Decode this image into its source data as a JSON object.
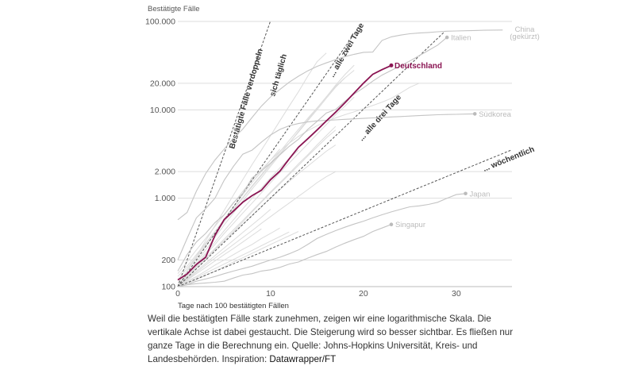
{
  "chart_data": {
    "type": "line",
    "ylabel": "Bestätigte Fälle",
    "xlabel": "Tage nach 100 bestätigten Fällen",
    "yscale": "log",
    "ylim": [
      100,
      100000
    ],
    "xlim": [
      0,
      36
    ],
    "yticks": [
      100,
      200,
      1000,
      2000,
      10000,
      20000,
      100000
    ],
    "ytick_labels": [
      "100",
      "200",
      "1.000",
      "2.000",
      "10.000",
      "20.000",
      "100.000"
    ],
    "xticks": [
      0,
      10,
      20,
      30
    ],
    "xtick_labels": [
      "0",
      "10",
      "20",
      "30"
    ],
    "grid": "horizontal",
    "colors": {
      "highlight": "#8a1452",
      "labeled": "#c4c4c4",
      "background": "#dcdcdc",
      "reference": "#555555"
    },
    "highlight": {
      "name": "Deutschland",
      "values": [
        119,
        139,
        178,
        215,
        380,
        575,
        717,
        902,
        1070,
        1230,
        1620,
        2024,
        2780,
        3770,
        4700,
        5900,
        7480,
        9400,
        12000,
        15500,
        20000,
        25200,
        28500,
        31800
      ]
    },
    "labeled_series": [
      {
        "name": "China",
        "name2": "(gekürzt)",
        "values": [
          570,
          690,
          1200,
          1900,
          2700,
          3600,
          4800,
          6070,
          8200,
          11000,
          14000,
          17000,
          20500,
          24000,
          27600,
          31000,
          34000,
          37000,
          40000,
          42500,
          44700,
          45000,
          61000,
          67000,
          70000,
          72500,
          74000,
          75000,
          76500,
          77500,
          78000,
          78500,
          79000,
          79500,
          79800,
          80000
        ]
      },
      {
        "name": "Italien",
        "values": [
          150,
          230,
          320,
          400,
          530,
          650,
          890,
          1130,
          1700,
          2040,
          2500,
          3090,
          3860,
          4640,
          6000,
          7400,
          9200,
          10100,
          12500,
          15100,
          17700,
          21100,
          24700,
          27980,
          31500,
          35700,
          41000,
          47000,
          54000,
          66000
        ]
      },
      {
        "name": "Südkorea",
        "values": [
          200,
          350,
          600,
          760,
          1000,
          1600,
          2300,
          3150,
          3500,
          4300,
          5200,
          6000,
          6600,
          7000,
          7300,
          7500,
          7600,
          7700,
          7800,
          7900,
          8000,
          8100,
          8200,
          8300,
          8400,
          8500,
          8600,
          8700,
          8800,
          8850,
          8900,
          8950,
          9000
        ]
      },
      {
        "name": "Japan",
        "values": [
          100,
          105,
          115,
          122,
          130,
          140,
          150,
          160,
          170,
          185,
          200,
          215,
          235,
          260,
          300,
          350,
          390,
          430,
          470,
          510,
          550,
          600,
          650,
          700,
          750,
          800,
          820,
          850,
          900,
          1000,
          1100,
          1130
        ]
      },
      {
        "name": "Singapur",
        "values": [
          100,
          105,
          108,
          110,
          112,
          115,
          125,
          135,
          140,
          150,
          155,
          165,
          180,
          190,
          210,
          230,
          250,
          280,
          310,
          340,
          370,
          420,
          460,
          505
        ]
      }
    ],
    "background_series": [
      {
        "values": [
          100,
          130,
          170,
          230,
          300,
          400,
          520,
          680,
          880,
          1150,
          1500,
          1950,
          2500,
          3200,
          4100,
          5300,
          6800,
          8800,
          11000,
          14000
        ]
      },
      {
        "values": [
          100,
          125,
          160,
          200,
          260,
          330,
          420,
          540,
          700,
          900,
          1150,
          1450,
          1850,
          2350,
          3000,
          3800,
          4800,
          5900
        ]
      },
      {
        "values": [
          110,
          150,
          210,
          290,
          400,
          540,
          740,
          1000,
          1350,
          1800,
          2400,
          3200,
          4200,
          5600,
          7500,
          10000,
          13500,
          18000,
          23000,
          28000
        ]
      },
      {
        "values": [
          100,
          120,
          145,
          175,
          210,
          250,
          300,
          360,
          430,
          520,
          620,
          740,
          880,
          1050,
          1250,
          1500,
          1750,
          2000
        ]
      },
      {
        "values": [
          100,
          115,
          130,
          150,
          175,
          200,
          230,
          265,
          300,
          350,
          400,
          460
        ]
      },
      {
        "values": [
          120,
          160,
          220,
          300,
          420,
          580,
          800,
          1100,
          1500,
          2000,
          2700,
          3600
        ]
      },
      {
        "values": [
          100,
          140,
          190,
          260,
          360,
          500,
          680,
          930,
          1270,
          1700,
          2300,
          3100,
          4200,
          5700,
          7700,
          10400,
          14000,
          19000,
          25000,
          32000
        ]
      },
      {
        "values": [
          100,
          118,
          140,
          165,
          195,
          230,
          270,
          320,
          380,
          450
        ]
      },
      {
        "values": [
          100,
          130,
          165,
          210,
          270,
          345,
          440,
          560,
          720,
          920,
          1180,
          1500,
          1900,
          2450,
          3100,
          4000,
          5100,
          6500
        ]
      },
      {
        "values": [
          130,
          170,
          230,
          310,
          420,
          560,
          760,
          1020,
          1380,
          1850,
          2500,
          3350,
          4500,
          6000,
          8000,
          10500,
          14000,
          18500,
          23000
        ]
      },
      {
        "values": [
          100,
          112,
          126,
          142,
          160,
          180,
          203,
          228,
          257,
          290,
          327,
          368,
          415
        ]
      },
      {
        "values": [
          100,
          150,
          220,
          330,
          490,
          730,
          1090,
          1620,
          2400,
          3500,
          5100,
          7500,
          11000,
          16000,
          24000,
          35000,
          44000
        ]
      },
      {
        "values": [
          100,
          122,
          150,
          183,
          224,
          274,
          335,
          410,
          500,
          610,
          750
        ]
      },
      {
        "values": [
          100,
          108,
          120,
          134,
          150,
          168,
          190,
          212,
          238,
          267,
          300,
          336,
          376,
          420
        ]
      },
      {
        "values": [
          140,
          190,
          260,
          350,
          480,
          650,
          880,
          1200,
          1600,
          2100,
          2700,
          3400,
          4200,
          5000,
          5800,
          6600,
          7400,
          8100,
          8800,
          9500,
          10300,
          11200,
          12200,
          13500,
          15500,
          18000,
          20000
        ]
      },
      {
        "values": [
          100,
          135,
          180,
          240,
          320,
          430,
          570,
          760,
          1000,
          1300,
          1700,
          2200,
          2800,
          3500
        ]
      },
      {
        "values": [
          105,
          130,
          165,
          210,
          265,
          330,
          410,
          510,
          640,
          800,
          1000,
          1250,
          1550,
          1900,
          2300,
          2800,
          3400,
          4000
        ]
      }
    ],
    "reference_lines": [
      {
        "label": "Bestätigte Fälle verdoppeln",
        "label2": "sich täglich",
        "doubling_days": 1
      },
      {
        "label": "... alle zwei Tage",
        "doubling_days": 2
      },
      {
        "label": "... alle drei Tage",
        "doubling_days": 3
      },
      {
        "label": "... wöchentlich",
        "doubling_days": 7
      }
    ]
  },
  "caption": {
    "text": "Weil die bestätigten Fälle stark zunehmen, zeigen wir eine logarithmische Skala. Die vertikale Achse ist dabei gestaucht. Die Steigerung wird so besser sichtbar. Es fließen nur ganze Tage in die Berechnung ein. Quelle: Johns-Hopkins Universität, Kreis- und Landesbehörden. Inspiration: ",
    "link": "Datawrapper/FT"
  }
}
